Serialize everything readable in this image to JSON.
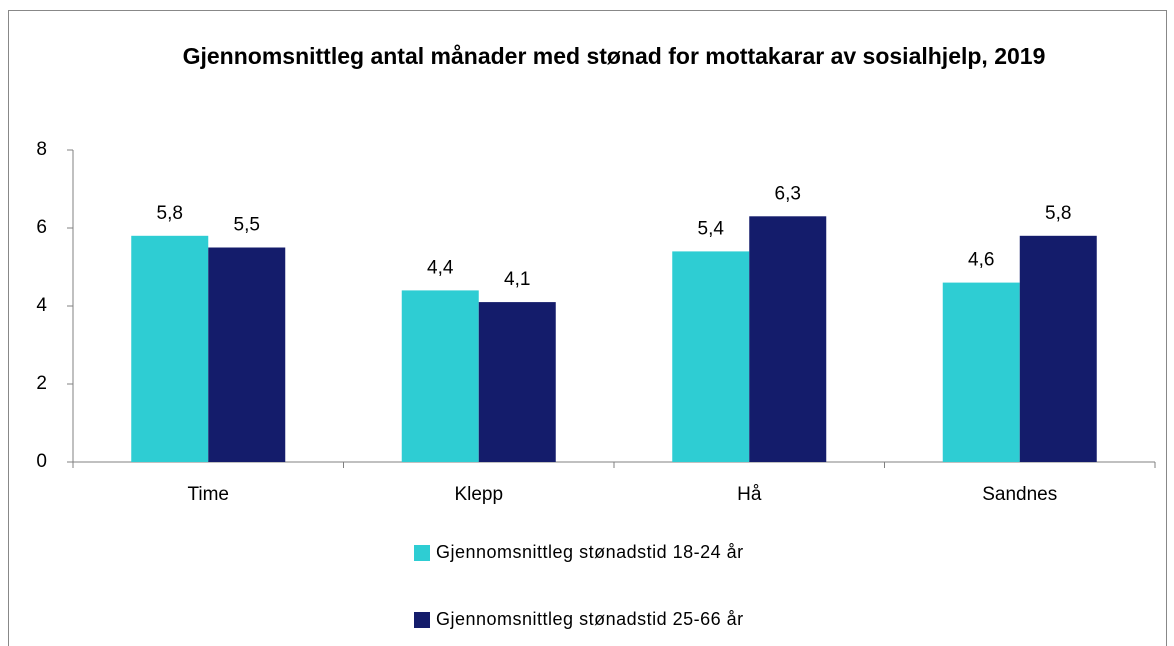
{
  "chart_data": {
    "type": "bar",
    "title": "Gjennomsnittleg antal månader med stønad for mottakarar av sosialhjelp, 2019",
    "categories": [
      "Time",
      "Klepp",
      "Hå",
      "Sandnes"
    ],
    "series": [
      {
        "name": "Gjennomsnittleg stønadstid 18-24 år",
        "color": "#2ecdd3",
        "values": [
          5.8,
          4.4,
          5.4,
          4.6
        ],
        "value_labels": [
          "5,8",
          "4,4",
          "5,4",
          "4,6"
        ]
      },
      {
        "name": "Gjennomsnittleg stønadstid 25-66 år",
        "color": "#141c6b",
        "values": [
          5.5,
          4.1,
          6.3,
          5.8
        ],
        "value_labels": [
          "5,5",
          "4,1",
          "6,3",
          "5,8"
        ]
      }
    ],
    "ylim": [
      0,
      8
    ],
    "yticks": [
      0,
      2,
      4,
      6,
      8
    ],
    "grid": false,
    "legend": "bottom"
  }
}
